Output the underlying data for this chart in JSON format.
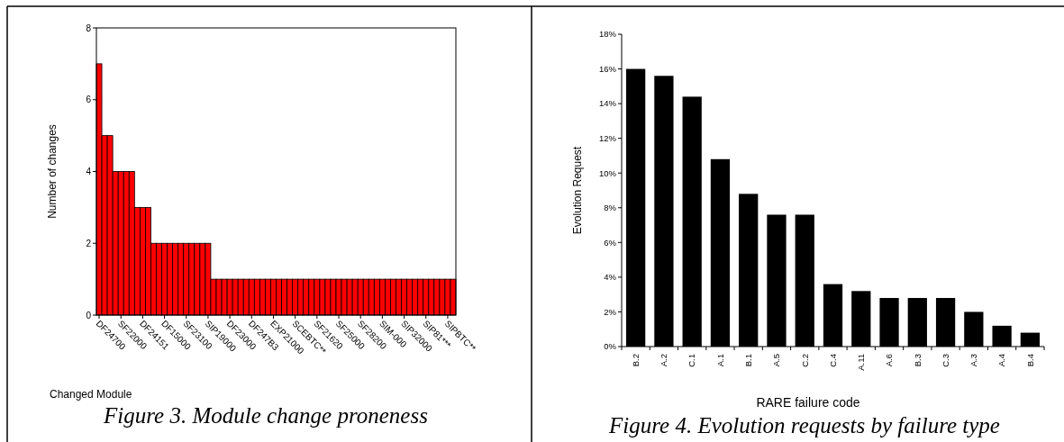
{
  "chart_data": [
    {
      "type": "bar",
      "title": "Figure 3. Module change proneness",
      "xlabel": "Changed Module",
      "ylabel": "Number of changes",
      "color": "#ff0000",
      "categories": [
        "DF24700",
        null,
        null,
        null,
        "SF22000",
        null,
        null,
        null,
        "DF24151",
        null,
        null,
        null,
        "DF15000",
        null,
        null,
        null,
        "SF23100",
        null,
        null,
        null,
        "SIP19000",
        null,
        null,
        null,
        "DF23000",
        null,
        null,
        null,
        "DF247B3",
        null,
        null,
        null,
        "EXP21000",
        null,
        null,
        null,
        "SCEBTC**",
        null,
        null,
        null,
        "SF21620",
        null,
        null,
        null,
        "SF25000",
        null,
        null,
        null,
        "SF28200",
        null,
        null,
        null,
        "SIM-000",
        null,
        null,
        null,
        "SIP32000",
        null,
        null,
        null,
        "SIP81***",
        null,
        null,
        null,
        "SIPBTC**",
        null
      ],
      "values": [
        7,
        5,
        5,
        4,
        4,
        4,
        4,
        3,
        3,
        3,
        2,
        2,
        2,
        2,
        2,
        2,
        2,
        2,
        2,
        2,
        2,
        1,
        1,
        1,
        1,
        1,
        1,
        1,
        1,
        1,
        1,
        1,
        1,
        1,
        1,
        1,
        1,
        1,
        1,
        1,
        1,
        1,
        1,
        1,
        1,
        1,
        1,
        1,
        1,
        1,
        1,
        1,
        1,
        1,
        1,
        1,
        1,
        1,
        1,
        1,
        1,
        1,
        1,
        1,
        1,
        1
      ],
      "ylim": [
        0,
        8
      ],
      "yticks": [
        0,
        2,
        4,
        6,
        8
      ]
    },
    {
      "type": "bar",
      "title": "Figure 4. Evolution requests by failure type",
      "xlabel": "RARE failure code",
      "ylabel": "Evolution Request",
      "color": "#000000",
      "categories": [
        "B.2",
        "A.2",
        "C.1",
        "A.1",
        "B.1",
        "A.5",
        "C.2",
        "C.4",
        "A.11",
        "A.6",
        "B.3",
        "C.3",
        "A.3",
        "A.4",
        "B.4"
      ],
      "values": [
        16,
        15.6,
        14.4,
        10.8,
        8.8,
        7.6,
        7.6,
        3.6,
        3.2,
        2.8,
        2.8,
        2.8,
        2.0,
        1.2,
        0.8
      ],
      "ylim": [
        0,
        18
      ],
      "yticks": [
        {
          "value": 0,
          "label": "0%"
        },
        {
          "value": 2,
          "label": "2%"
        },
        {
          "value": 4,
          "label": "4%"
        },
        {
          "value": 6,
          "label": "6%"
        },
        {
          "value": 8,
          "label": "8%"
        },
        {
          "value": 10,
          "label": "10%"
        },
        {
          "value": 12,
          "label": "12%"
        },
        {
          "value": 14,
          "label": "14%"
        },
        {
          "value": 16,
          "label": "16%"
        },
        {
          "value": 18,
          "label": "18%"
        }
      ]
    }
  ]
}
